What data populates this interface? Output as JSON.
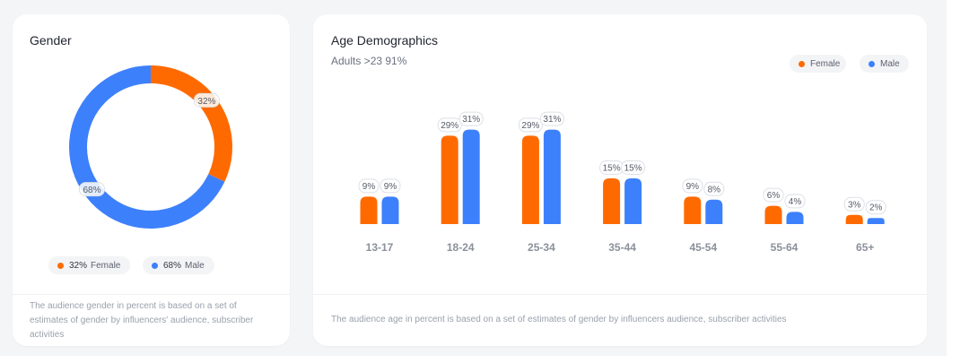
{
  "gender": {
    "title": "Gender",
    "footer": "The audience gender in percent is based on a set of estimates of gender by influencers' audience, subscriber activities",
    "legend": [
      {
        "value": "32%",
        "label": "Female",
        "color": "#ff6a00"
      },
      {
        "value": "68%",
        "label": "Male",
        "color": "#3d80fb"
      }
    ]
  },
  "age": {
    "title": "Age Demographics",
    "subtitle": "Adults >23 91%",
    "footer": "The audience age in percent is based on a set of estimates of gender by influencers audience, subscriber activities",
    "legend": [
      {
        "label": "Female",
        "color": "#ff6a00"
      },
      {
        "label": "Male",
        "color": "#3d80fb"
      }
    ]
  },
  "chart_data": [
    {
      "type": "pie",
      "title": "Gender",
      "donut": true,
      "labels": [
        "Female",
        "Male"
      ],
      "values": [
        32,
        68
      ],
      "colors": [
        "#ff6a00",
        "#3d80fb"
      ],
      "data_labels": [
        "32%",
        "68%"
      ]
    },
    {
      "type": "bar",
      "title": "Age Demographics",
      "categories": [
        "13-17",
        "18-24",
        "25-34",
        "35-44",
        "45-54",
        "55-64",
        "65+"
      ],
      "series": [
        {
          "name": "Female",
          "color": "#ff6a00",
          "values": [
            9,
            29,
            29,
            15,
            9,
            6,
            3
          ]
        },
        {
          "name": "Male",
          "color": "#3d80fb",
          "values": [
            9,
            31,
            31,
            15,
            8,
            4,
            2
          ]
        }
      ],
      "value_suffix": "%",
      "legend": "top-right",
      "grid": false
    }
  ]
}
